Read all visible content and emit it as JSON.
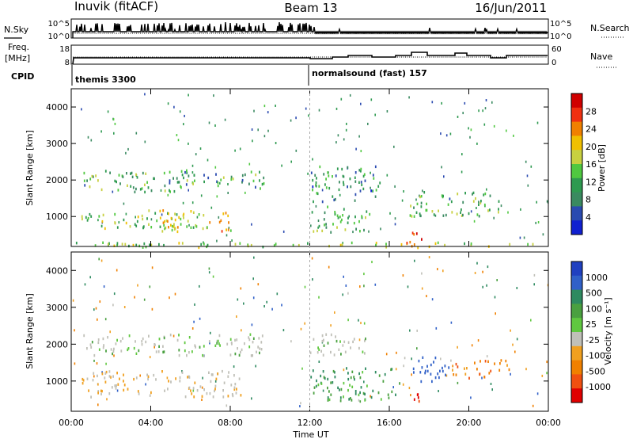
{
  "header": {
    "station": "Inuvik (fitACF)",
    "beam": "Beam 13",
    "date": "16/Jun/2011"
  },
  "nsky_panel": {
    "left_label": "N.Sky",
    "right_label": "N.Search",
    "left_ticks": [
      "10^5",
      "10^0"
    ],
    "right_ticks": [
      "10^5",
      "10^0"
    ]
  },
  "freq_panel": {
    "left_label_1": "Freq.",
    "left_label_2": "[MHz]",
    "right_label": "Nave",
    "left_ticks": [
      "18",
      "8"
    ],
    "right_ticks": [
      "60",
      "0"
    ]
  },
  "cpid": {
    "label": "CPID",
    "segments": [
      {
        "name": "themis 3300",
        "start": "00:00"
      },
      {
        "name": "normalsound (fast) 157",
        "start": "12:00"
      }
    ]
  },
  "chart_data": [
    {
      "type": "heatmap",
      "quantity": "Power",
      "ylabel": "Slant Range [km]",
      "ylim": [
        180,
        4500
      ],
      "yticks": [
        "4000",
        "3000",
        "2000",
        "1000"
      ],
      "colorbar_label": "Power [dB]",
      "colorbar_ticks": [
        "28",
        "24",
        "20",
        "16",
        "12",
        "8",
        "4"
      ],
      "colorbar_colors": [
        "#d00000",
        "#f03010",
        "#f08000",
        "#f0c000",
        "#c8d040",
        "#50c840",
        "#2e9a50",
        "#3a8a60",
        "#2a4ab0",
        "#1020d0"
      ],
      "regions": [
        {
          "t": [
            0.6,
            6.0
          ],
          "range": [
            1700,
            2300
          ],
          "level": 12
        },
        {
          "t": [
            5.5,
            9.8
          ],
          "range": [
            1800,
            2300
          ],
          "level": 10
        },
        {
          "t": [
            0.5,
            6.5
          ],
          "range": [
            700,
            1200
          ],
          "level": 16
        },
        {
          "t": [
            4.5,
            8.0
          ],
          "range": [
            600,
            1200
          ],
          "level": 20
        },
        {
          "t": [
            12.0,
            15.5
          ],
          "range": [
            1400,
            2400
          ],
          "level": 8
        },
        {
          "t": [
            12.0,
            15.0
          ],
          "range": [
            600,
            1300
          ],
          "level": 12
        },
        {
          "t": [
            16.8,
            17.6
          ],
          "range": [
            200,
            800
          ],
          "level": 28
        },
        {
          "t": [
            17.0,
            21.5
          ],
          "range": [
            1000,
            1700
          ],
          "level": 12
        },
        {
          "t": [
            0.0,
            24.0
          ],
          "range": [
            180,
            320
          ],
          "level": 16
        }
      ]
    },
    {
      "type": "heatmap",
      "quantity": "Velocity",
      "xlabel": "Time UT",
      "ylabel": "Slant Range [km]",
      "xlim": [
        "00:00",
        "24:00"
      ],
      "xticks": [
        "00:00",
        "04:00",
        "08:00",
        "12:00",
        "16:00",
        "20:00",
        "00:00"
      ],
      "ylim": [
        180,
        4500
      ],
      "yticks": [
        "4000",
        "3000",
        "2000",
        "1000"
      ],
      "colorbar_label": "Velocity [m s⁻¹]",
      "colorbar_ticks": [
        "1000",
        "500",
        "100",
        "25",
        "-25",
        "-100",
        "-500",
        "-1000"
      ],
      "colorbar_colors": [
        "#2040c0",
        "#3060c8",
        "#2e8a60",
        "#4aa040",
        "#60c840",
        "#c0c0b8",
        "#f0a020",
        "#f08000",
        "#f05010",
        "#e00000"
      ],
      "regions": [
        {
          "t": [
            0.6,
            9.8
          ],
          "range": [
            1700,
            2300
          ],
          "level": 0
        },
        {
          "t": [
            12.0,
            15.0
          ],
          "range": [
            1700,
            2300
          ],
          "level": 0
        },
        {
          "t": [
            0.5,
            8.5
          ],
          "range": [
            600,
            1300
          ],
          "level": -50
        },
        {
          "t": [
            12.0,
            16.5
          ],
          "range": [
            500,
            1400
          ],
          "level": 80
        },
        {
          "t": [
            17.0,
            19.0
          ],
          "range": [
            1000,
            1700
          ],
          "level": 500
        },
        {
          "t": [
            19.0,
            22.0
          ],
          "range": [
            1100,
            1600
          ],
          "level": -300
        },
        {
          "t": [
            17.0,
            17.6
          ],
          "range": [
            200,
            700
          ],
          "level": -800
        }
      ]
    }
  ]
}
